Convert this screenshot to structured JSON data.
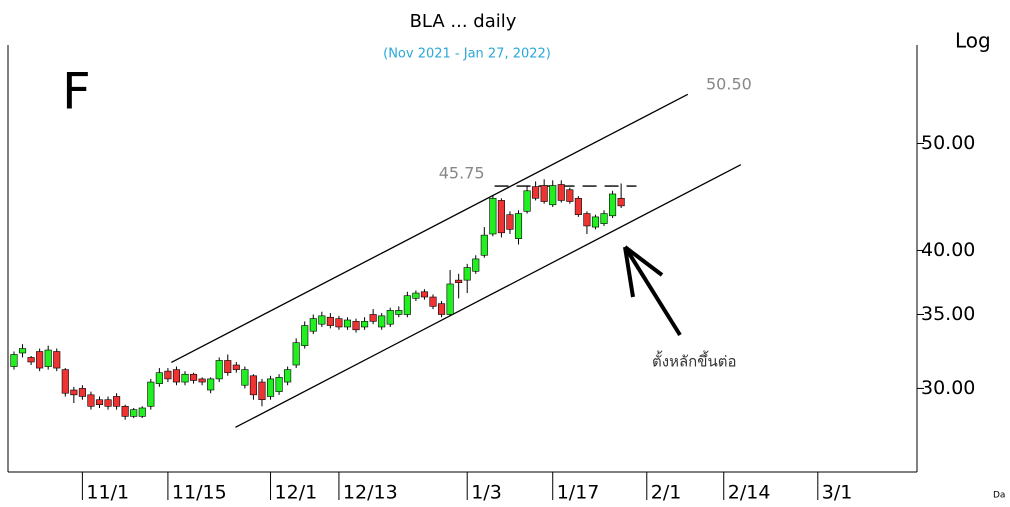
{
  "chart_data": {
    "type": "candlestick",
    "title": "BLA ... daily",
    "subtitle": "(Nov 2021 - Jan 27, 2022)",
    "panel_letter": "F",
    "scale_label": "Log",
    "log_scale": true,
    "corner_text": "Da",
    "up_color": "#22ee22",
    "down_color": "#ee3333",
    "x": [
      0,
      1,
      2,
      3,
      4,
      5,
      6,
      7,
      8,
      9,
      10,
      11,
      12,
      13,
      14,
      15,
      16,
      17,
      18,
      19,
      20,
      21,
      22,
      23,
      24,
      25,
      26,
      27,
      28,
      29,
      30,
      31,
      32,
      33,
      34,
      35,
      36,
      37,
      38,
      39,
      40,
      41,
      42,
      43,
      44,
      45,
      46,
      47,
      48,
      49,
      50,
      51,
      52,
      53,
      54,
      55,
      56,
      57,
      58,
      59,
      60,
      61,
      62,
      63,
      64,
      65,
      66,
      67,
      68,
      69,
      70,
      71
    ],
    "open": [
      31.4,
      32.3,
      32.0,
      32.4,
      31.4,
      32.4,
      31.2,
      29.9,
      30.0,
      29.6,
      29.3,
      29.3,
      29.5,
      28.9,
      28.3,
      28.3,
      28.9,
      30.3,
      31.1,
      31.2,
      30.4,
      30.9,
      30.6,
      29.9,
      30.6,
      31.8,
      31.5,
      30.2,
      30.8,
      30.4,
      29.5,
      29.8,
      30.4,
      31.5,
      32.8,
      33.8,
      34.3,
      34.8,
      34.7,
      34.1,
      34.5,
      34.1,
      35.0,
      34.1,
      34.3,
      35.0,
      35.0,
      36.2,
      36.7,
      36.3,
      35.8,
      35.0,
      37.6,
      37.6,
      38.3,
      39.6,
      41.4,
      44.4,
      43.1,
      41.0,
      43.4,
      45.7,
      45.8,
      44.0,
      45.9,
      45.4,
      44.6,
      43.2,
      42.0,
      42.3,
      43.0,
      44.6
    ],
    "high": [
      32.4,
      32.9,
      32.1,
      32.6,
      32.8,
      32.6,
      31.3,
      30.1,
      30.2,
      29.8,
      29.5,
      29.5,
      29.7,
      29.0,
      28.8,
      28.9,
      30.6,
      31.3,
      31.3,
      31.4,
      31.1,
      31.0,
      30.7,
      30.7,
      32.0,
      32.2,
      31.7,
      31.4,
      30.9,
      30.6,
      30.8,
      30.9,
      31.4,
      33.3,
      34.5,
      35.0,
      35.2,
      35.1,
      34.9,
      34.8,
      34.7,
      34.8,
      35.4,
      35.1,
      35.5,
      35.6,
      36.7,
      36.8,
      36.9,
      36.5,
      36.0,
      38.4,
      38.1,
      38.9,
      39.6,
      42.0,
      44.9,
      44.6,
      43.4,
      43.5,
      45.8,
      46.2,
      46.4,
      46.3,
      46.3,
      45.6,
      44.8,
      43.4,
      43.1,
      43.5,
      45.3,
      46.0
    ],
    "low": [
      31.2,
      32.0,
      31.5,
      31.1,
      31.2,
      31.1,
      29.5,
      29.1,
      29.3,
      28.7,
      28.8,
      28.7,
      28.7,
      28.1,
      28.2,
      28.2,
      28.7,
      30.1,
      30.4,
      30.2,
      30.2,
      30.3,
      30.2,
      29.7,
      30.4,
      30.8,
      31.0,
      30.0,
      29.3,
      28.9,
      29.3,
      29.6,
      30.2,
      31.3,
      32.6,
      33.6,
      34.1,
      34.0,
      33.9,
      33.9,
      33.7,
      33.9,
      34.3,
      33.9,
      34.1,
      34.8,
      34.8,
      36.0,
      36.1,
      35.4,
      34.8,
      34.9,
      36.2,
      36.6,
      38.1,
      39.4,
      41.2,
      41.1,
      41.4,
      40.5,
      43.2,
      44.4,
      44.1,
      43.8,
      44.2,
      44.1,
      42.9,
      41.4,
      41.8,
      42.1,
      42.8,
      43.7
    ],
    "close": [
      32.2,
      32.6,
      31.7,
      31.3,
      32.5,
      31.3,
      29.7,
      29.6,
      29.5,
      28.9,
      29.0,
      28.9,
      28.9,
      28.3,
      28.7,
      28.8,
      30.4,
      31.0,
      30.6,
      30.4,
      30.9,
      30.5,
      30.4,
      30.6,
      31.8,
      31.0,
      31.2,
      31.2,
      29.6,
      29.3,
      30.6,
      30.7,
      31.2,
      33.0,
      34.2,
      34.7,
      34.9,
      34.2,
      34.1,
      34.6,
      33.9,
      34.5,
      34.5,
      34.9,
      35.3,
      35.3,
      36.4,
      36.6,
      36.3,
      35.6,
      35.0,
      37.3,
      37.4,
      38.6,
      39.3,
      41.3,
      44.6,
      41.5,
      41.8,
      43.2,
      45.3,
      44.6,
      44.3,
      45.8,
      44.4,
      44.3,
      43.1,
      42.1,
      42.9,
      43.2,
      45.0,
      43.9
    ],
    "xlim": [
      -0.7,
      105.6
    ],
    "xticks": [
      {
        "value": 8,
        "label": "11/1"
      },
      {
        "value": 18,
        "label": "11/15"
      },
      {
        "value": 30,
        "label": "12/1"
      },
      {
        "value": 38,
        "label": "12/13"
      },
      {
        "value": 53,
        "label": "1/3"
      },
      {
        "value": 63,
        "label": "1/17"
      },
      {
        "value": 74,
        "label": "2/1"
      },
      {
        "value": 83,
        "label": "2/14"
      },
      {
        "value": 94,
        "label": "3/1"
      }
    ],
    "ylim": [
      25.2,
      61.4
    ],
    "yticks": [
      {
        "value": 30,
        "label": "30.00"
      },
      {
        "value": 35,
        "label": "35.00"
      },
      {
        "value": 40,
        "label": "40.00"
      },
      {
        "value": 50,
        "label": "50.00"
      }
    ],
    "lines": [
      {
        "x": [
          18.4,
          78.8
        ],
        "values": [
          31.67,
          55.4
        ],
        "dashed": false
      },
      {
        "x": [
          25.9,
          85.0
        ],
        "values": [
          27.66,
          47.84
        ],
        "dashed": false
      },
      {
        "x": [
          56.2,
          72.8
        ],
        "values": [
          45.75,
          45.75
        ],
        "dashed": true
      }
    ],
    "annotations": [
      {
        "text": "50.50"
      },
      {
        "text": "ตั้งหลักขึ้นต่อ"
      }
    ]
  }
}
